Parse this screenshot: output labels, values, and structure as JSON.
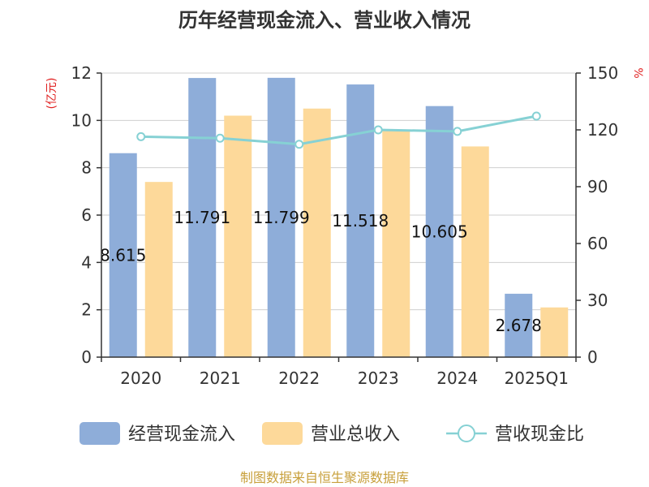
{
  "chart_data": {
    "type": "bar",
    "title": "历年经营现金流入、营业收入情况",
    "y_left_unit": "(亿元)",
    "y_right_unit": "%",
    "categories": [
      "2020",
      "2021",
      "2022",
      "2023",
      "2024",
      "2025Q1"
    ],
    "y_left_ticks": [
      "0",
      "2",
      "4",
      "6",
      "8",
      "10",
      "12"
    ],
    "y_right_ticks": [
      "0",
      "30",
      "60",
      "90",
      "120",
      "150"
    ],
    "ylim_left": [
      0,
      12
    ],
    "ylim_right": [
      0,
      150
    ],
    "grid": true,
    "legend_position": "bottom",
    "series": [
      {
        "name": "经营现金流入",
        "kind": "bar",
        "axis": "left",
        "color": "#8eadd9",
        "values": [
          8.615,
          11.791,
          11.799,
          11.518,
          10.605,
          2.678
        ],
        "labels": [
          "8.615",
          "11.791",
          "11.799",
          "11.518",
          "10.605",
          "2.678"
        ]
      },
      {
        "name": "营业总收入",
        "kind": "bar",
        "axis": "left",
        "color": "#fdd99a",
        "values": [
          7.4,
          10.2,
          10.5,
          9.6,
          8.9,
          2.1
        ]
      },
      {
        "name": "营收现金比",
        "kind": "line",
        "axis": "right",
        "color": "#86d1d4",
        "values": [
          116.4,
          115.6,
          112.4,
          120.0,
          119.2,
          127.3
        ]
      }
    ]
  },
  "source": "制图数据来自恒生聚源数据库"
}
